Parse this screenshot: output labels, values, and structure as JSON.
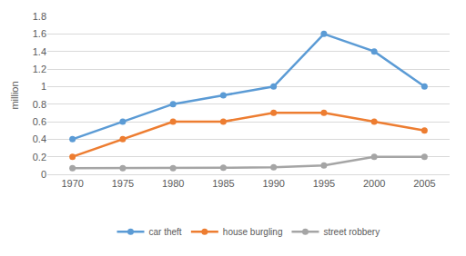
{
  "chart_data": {
    "type": "line",
    "y_label": "million",
    "categories": [
      "1970",
      "1975",
      "1980",
      "1985",
      "1990",
      "1995",
      "2000",
      "2005"
    ],
    "series": [
      {
        "name": "car theft",
        "color": "#5b9bd5",
        "values": [
          0.4,
          0.6,
          0.8,
          0.9,
          1.0,
          1.6,
          1.4,
          1.0
        ]
      },
      {
        "name": "house burgling",
        "color": "#ed7d31",
        "values": [
          0.2,
          0.4,
          0.6,
          0.6,
          0.7,
          0.7,
          0.6,
          0.5
        ]
      },
      {
        "name": "street robbery",
        "color": "#a5a5a5",
        "values": [
          0.07,
          0.07,
          0.07,
          0.075,
          0.08,
          0.1,
          0.2,
          0.2
        ]
      }
    ],
    "ylim": [
      0,
      1.8
    ],
    "yticks": [
      0,
      0.2,
      0.4,
      0.6,
      0.8,
      1,
      1.2,
      1.4,
      1.6,
      1.8
    ],
    "grid": true,
    "legend": "bottom",
    "marker": "circle",
    "line_style": "solid"
  }
}
